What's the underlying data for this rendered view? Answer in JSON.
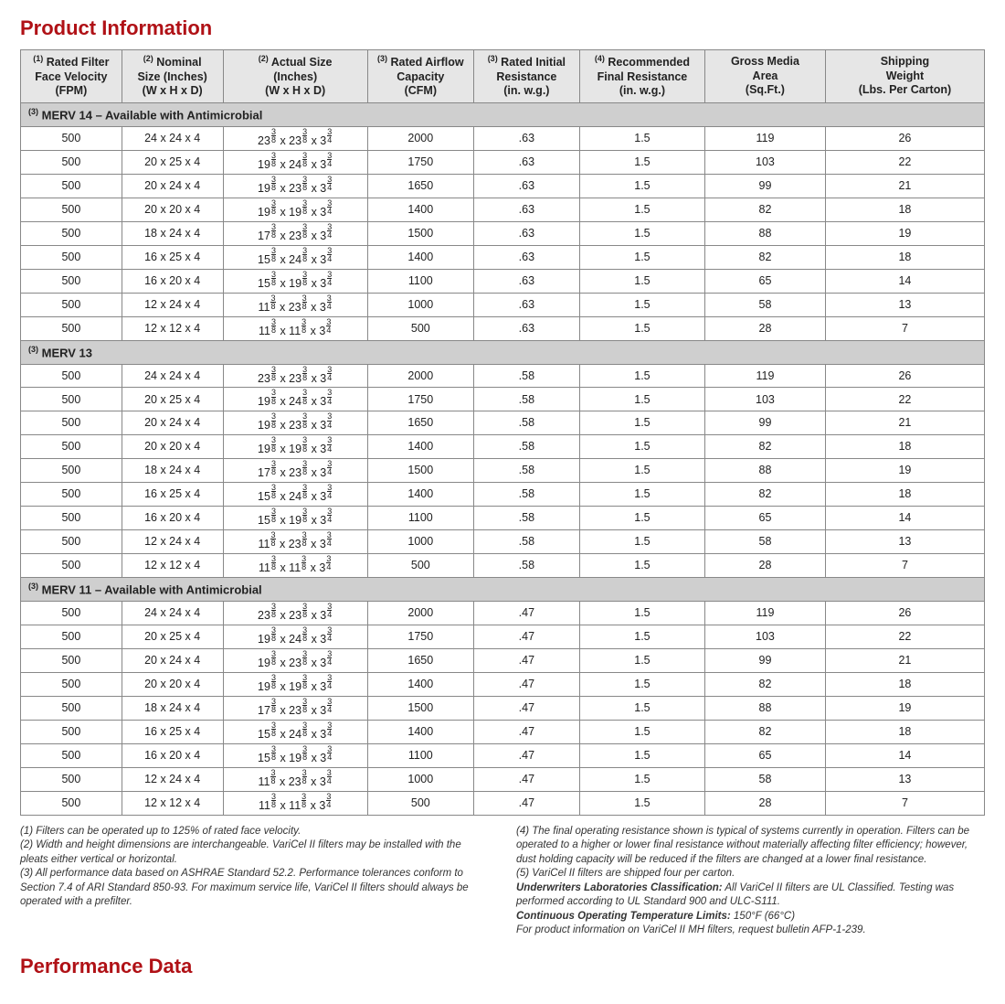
{
  "title": "Product Information",
  "performance_title": "Performance Data",
  "headers": {
    "c1": {
      "sup": "(1)",
      "l1": "Rated Filter",
      "l2": "Face Velocity",
      "l3": "(FPM)"
    },
    "c2": {
      "sup": "(2)",
      "l1": "Nominal",
      "l2": "Size (Inches)",
      "l3": "(W x H x D)"
    },
    "c3": {
      "sup": "(2)",
      "l1": "Actual Size",
      "l2": "(Inches)",
      "l3": "(W x H x D)"
    },
    "c4": {
      "sup": "(3)",
      "l1": "Rated Airflow",
      "l2": "Capacity",
      "l3": "(CFM)"
    },
    "c5": {
      "sup": "(3)",
      "l1": "Rated Initial",
      "l2": "Resistance",
      "l3": "(in. w.g.)"
    },
    "c6": {
      "sup": "(4)",
      "l1": "Recommended",
      "l2": "Final Resistance",
      "l3": "(in. w.g.)"
    },
    "c7": {
      "sup": "",
      "l1": "Gross Media",
      "l2": "Area",
      "l3": "(Sq.Ft.)"
    },
    "c8": {
      "sup": "",
      "l1": "Shipping",
      "l2": "Weight",
      "l3": "(Lbs. Per Carton)"
    }
  },
  "sections": [
    {
      "label_sup": "(3)",
      "label": " MERV 14 – Available with Antimicrobial",
      "rows": [
        {
          "v": "500",
          "nom": "24 x 24 x 4",
          "aw": "23",
          "ah": "23",
          "cfm": "2000",
          "ir": ".63",
          "fr": "1.5",
          "area": "119",
          "wt": "26"
        },
        {
          "v": "500",
          "nom": "20 x 25 x 4",
          "aw": "19",
          "ah": "24",
          "cfm": "1750",
          "ir": ".63",
          "fr": "1.5",
          "area": "103",
          "wt": "22"
        },
        {
          "v": "500",
          "nom": "20 x 24 x 4",
          "aw": "19",
          "ah": "23",
          "cfm": "1650",
          "ir": ".63",
          "fr": "1.5",
          "area": "99",
          "wt": "21"
        },
        {
          "v": "500",
          "nom": "20 x 20 x 4",
          "aw": "19",
          "ah": "19",
          "cfm": "1400",
          "ir": ".63",
          "fr": "1.5",
          "area": "82",
          "wt": "18"
        },
        {
          "v": "500",
          "nom": "18 x 24 x 4",
          "aw": "17",
          "ah": "23",
          "cfm": "1500",
          "ir": ".63",
          "fr": "1.5",
          "area": "88",
          "wt": "19"
        },
        {
          "v": "500",
          "nom": "16 x 25 x 4",
          "aw": "15",
          "ah": "24",
          "cfm": "1400",
          "ir": ".63",
          "fr": "1.5",
          "area": "82",
          "wt": "18"
        },
        {
          "v": "500",
          "nom": "16 x 20 x 4",
          "aw": "15",
          "ah": "19",
          "cfm": "1100",
          "ir": ".63",
          "fr": "1.5",
          "area": "65",
          "wt": "14"
        },
        {
          "v": "500",
          "nom": "12 x 24 x 4",
          "aw": "11",
          "ah": "23",
          "cfm": "1000",
          "ir": ".63",
          "fr": "1.5",
          "area": "58",
          "wt": "13"
        },
        {
          "v": "500",
          "nom": "12 x 12 x 4",
          "aw": "11",
          "ah": "11",
          "cfm": "500",
          "ir": ".63",
          "fr": "1.5",
          "area": "28",
          "wt": "7"
        }
      ]
    },
    {
      "label_sup": "(3)",
      "label": " MERV 13",
      "rows": [
        {
          "v": "500",
          "nom": "24 x 24 x 4",
          "aw": "23",
          "ah": "23",
          "cfm": "2000",
          "ir": ".58",
          "fr": "1.5",
          "area": "119",
          "wt": "26"
        },
        {
          "v": "500",
          "nom": "20 x 25 x 4",
          "aw": "19",
          "ah": "24",
          "cfm": "1750",
          "ir": ".58",
          "fr": "1.5",
          "area": "103",
          "wt": "22"
        },
        {
          "v": "500",
          "nom": "20 x 24 x 4",
          "aw": "19",
          "ah": "23",
          "cfm": "1650",
          "ir": ".58",
          "fr": "1.5",
          "area": "99",
          "wt": "21"
        },
        {
          "v": "500",
          "nom": "20 x 20 x 4",
          "aw": "19",
          "ah": "19",
          "cfm": "1400",
          "ir": ".58",
          "fr": "1.5",
          "area": "82",
          "wt": "18"
        },
        {
          "v": "500",
          "nom": "18 x 24 x 4",
          "aw": "17",
          "ah": "23",
          "cfm": "1500",
          "ir": ".58",
          "fr": "1.5",
          "area": "88",
          "wt": "19"
        },
        {
          "v": "500",
          "nom": "16 x 25 x 4",
          "aw": "15",
          "ah": "24",
          "cfm": "1400",
          "ir": ".58",
          "fr": "1.5",
          "area": "82",
          "wt": "18"
        },
        {
          "v": "500",
          "nom": "16 x 20 x 4",
          "aw": "15",
          "ah": "19",
          "cfm": "1100",
          "ir": ".58",
          "fr": "1.5",
          "area": "65",
          "wt": "14"
        },
        {
          "v": "500",
          "nom": "12 x 24 x 4",
          "aw": "11",
          "ah": "23",
          "cfm": "1000",
          "ir": ".58",
          "fr": "1.5",
          "area": "58",
          "wt": "13"
        },
        {
          "v": "500",
          "nom": "12 x 12 x 4",
          "aw": "11",
          "ah": "11",
          "cfm": "500",
          "ir": ".58",
          "fr": "1.5",
          "area": "28",
          "wt": "7"
        }
      ]
    },
    {
      "label_sup": "(3)",
      "label": " MERV 11 – Available with Antimicrobial",
      "rows": [
        {
          "v": "500",
          "nom": "24 x 24 x 4",
          "aw": "23",
          "ah": "23",
          "cfm": "2000",
          "ir": ".47",
          "fr": "1.5",
          "area": "119",
          "wt": "26"
        },
        {
          "v": "500",
          "nom": "20 x 25 x 4",
          "aw": "19",
          "ah": "24",
          "cfm": "1750",
          "ir": ".47",
          "fr": "1.5",
          "area": "103",
          "wt": "22"
        },
        {
          "v": "500",
          "nom": "20 x 24 x 4",
          "aw": "19",
          "ah": "23",
          "cfm": "1650",
          "ir": ".47",
          "fr": "1.5",
          "area": "99",
          "wt": "21"
        },
        {
          "v": "500",
          "nom": "20 x 20 x 4",
          "aw": "19",
          "ah": "19",
          "cfm": "1400",
          "ir": ".47",
          "fr": "1.5",
          "area": "82",
          "wt": "18"
        },
        {
          "v": "500",
          "nom": "18 x 24 x 4",
          "aw": "17",
          "ah": "23",
          "cfm": "1500",
          "ir": ".47",
          "fr": "1.5",
          "area": "88",
          "wt": "19"
        },
        {
          "v": "500",
          "nom": "16 x 25 x 4",
          "aw": "15",
          "ah": "24",
          "cfm": "1400",
          "ir": ".47",
          "fr": "1.5",
          "area": "82",
          "wt": "18"
        },
        {
          "v": "500",
          "nom": "16 x 20 x 4",
          "aw": "15",
          "ah": "19",
          "cfm": "1100",
          "ir": ".47",
          "fr": "1.5",
          "area": "65",
          "wt": "14"
        },
        {
          "v": "500",
          "nom": "12 x 24 x 4",
          "aw": "11",
          "ah": "23",
          "cfm": "1000",
          "ir": ".47",
          "fr": "1.5",
          "area": "58",
          "wt": "13"
        },
        {
          "v": "500",
          "nom": "12 x 12 x 4",
          "aw": "11",
          "ah": "11",
          "cfm": "500",
          "ir": ".47",
          "fr": "1.5",
          "area": "28",
          "wt": "7"
        }
      ]
    }
  ],
  "footnotes_left": [
    "(1) Filters can be operated up to 125% of rated face velocity.",
    "(2) Width and height dimensions are interchangeable. VariCel II filters may be installed with the pleats either vertical or horizontal.",
    "(3) All performance data based on ASHRAE Standard 52.2. Performance tolerances conform to Section 7.4 of ARI Standard 850-93. For maximum service life, VariCel II filters should always be operated with a prefilter."
  ],
  "footnotes_right": [
    "(4) The final operating resistance shown is typical of systems currently in operation. Filters can be operated to a higher or lower final resistance without materially affecting filter efficiency; however, dust holding capacity will be reduced if the filters are changed at a lower final resistance.",
    "(5) VariCel II filters are shipped four per carton.",
    "Underwriters Laboratories Classification: All VariCel II filters are UL Classified. Testing was performed according to UL Standard 900 and ULC-S111.",
    "Continuous Operating Temperature Limits: 150°F (66°C)",
    "For product information on VariCel II MH filters, request bulletin AFP-1-239."
  ],
  "fraction_38": {
    "n": "3",
    "d": "8"
  },
  "fraction_34": {
    "n": "3",
    "d": "4"
  }
}
